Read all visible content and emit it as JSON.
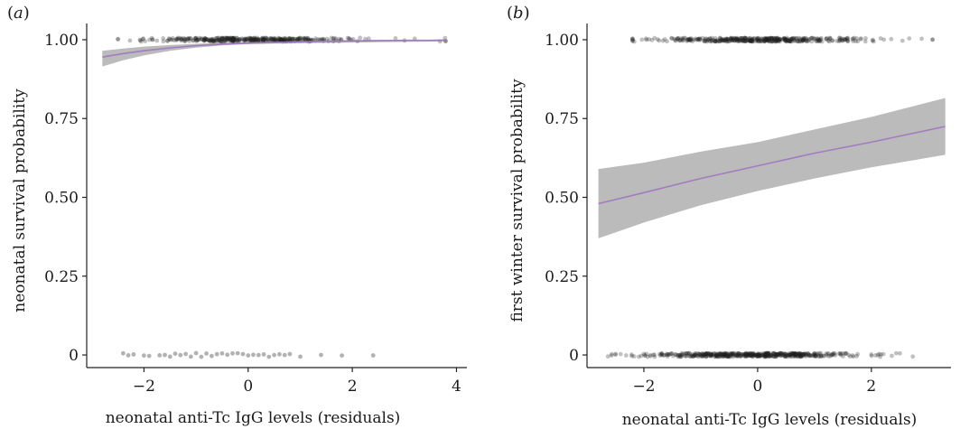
{
  "chart_data": [
    {
      "type": "scatter",
      "panel_label": "a",
      "xlabel": "neonatal anti-Tc IgG levels (residuals)",
      "ylabel": "neonatal survival probability",
      "xlim": [
        -3.1,
        4.2
      ],
      "ylim": [
        -0.04,
        1.04
      ],
      "xticks": [
        -2,
        0,
        2,
        4
      ],
      "xtick_labels": [
        "−2",
        "0",
        "2",
        "4"
      ],
      "yticks": [
        0,
        0.25,
        0.5,
        0.75,
        1.0
      ],
      "ytick_labels": [
        "0",
        "0.25",
        "0.50",
        "0.75",
        "1.00"
      ],
      "fit_line": {
        "x": [
          -2.8,
          -2.4,
          -2.0,
          -1.5,
          -1.0,
          -0.5,
          0.0,
          0.5,
          1.0,
          1.5,
          2.0,
          2.5,
          3.0,
          3.5,
          3.8
        ],
        "y": [
          0.945,
          0.956,
          0.965,
          0.974,
          0.981,
          0.986,
          0.989,
          0.991,
          0.993,
          0.995,
          0.996,
          0.997,
          0.998,
          0.998,
          0.999
        ]
      },
      "ci_band": {
        "x": [
          -2.8,
          -2.4,
          -2.0,
          -1.5,
          -1.0,
          -0.5,
          0.0,
          0.5,
          1.0,
          1.5,
          2.0,
          2.5,
          3.0,
          3.5,
          3.8
        ],
        "lower": [
          0.915,
          0.935,
          0.95,
          0.965,
          0.975,
          0.982,
          0.986,
          0.988,
          0.989,
          0.99,
          0.991,
          0.992,
          0.993,
          0.994,
          0.995
        ],
        "upper": [
          0.965,
          0.972,
          0.978,
          0.983,
          0.987,
          0.99,
          0.992,
          0.994,
          0.996,
          0.998,
          0.999,
          1.0,
          1.0,
          1.0,
          1.0
        ]
      },
      "points": {
        "survived_y": 1.0,
        "survived_x_range": [
          -2.5,
          3.8
        ],
        "survived_count": 380,
        "died_y": 0.0,
        "died_x": [
          -2.4,
          -2.3,
          -2.2,
          -2.0,
          -1.9,
          -1.7,
          -1.6,
          -1.5,
          -1.4,
          -1.3,
          -1.2,
          -1.1,
          -1.0,
          -0.9,
          -0.8,
          -0.7,
          -0.6,
          -0.5,
          -0.4,
          -0.3,
          -0.2,
          -0.1,
          0.0,
          0.1,
          0.2,
          0.3,
          0.4,
          0.5,
          0.6,
          0.7,
          0.8,
          1.0,
          1.4,
          1.8,
          2.4
        ]
      },
      "colors": {
        "line": "#a27cc0",
        "band": "#9e9e9e",
        "points": "#222222"
      }
    },
    {
      "type": "scatter",
      "panel_label": "b",
      "xlabel": "neonatal anti-Tc IgG levels (residuals)",
      "ylabel": "first winter survival probability",
      "xlim": [
        -3.0,
        3.4
      ],
      "ylim": [
        -0.04,
        1.04
      ],
      "xticks": [
        -2,
        0,
        2
      ],
      "xtick_labels": [
        "−2",
        "0",
        "2"
      ],
      "yticks": [
        0,
        0.25,
        0.5,
        0.75,
        1.0
      ],
      "ytick_labels": [
        "0",
        "0.25",
        "0.50",
        "0.75",
        "1.00"
      ],
      "fit_line": {
        "x": [
          -2.8,
          -2.0,
          -1.0,
          0.0,
          1.0,
          2.0,
          3.3
        ],
        "y": [
          0.48,
          0.515,
          0.56,
          0.6,
          0.64,
          0.675,
          0.725
        ]
      },
      "ci_band": {
        "x": [
          -2.8,
          -2.0,
          -1.0,
          0.0,
          1.0,
          2.0,
          3.3
        ],
        "lower": [
          0.37,
          0.42,
          0.475,
          0.52,
          0.56,
          0.595,
          0.635
        ],
        "upper": [
          0.59,
          0.61,
          0.645,
          0.675,
          0.715,
          0.755,
          0.815
        ]
      },
      "points": {
        "survived_y": 1.0,
        "survived_x_range": [
          -2.2,
          3.3
        ],
        "survived_count": 420,
        "died_y": 0.0,
        "died_x_range": [
          -2.8,
          3.3
        ],
        "died_count": 520
      },
      "colors": {
        "line": "#a27cc0",
        "band": "#9e9e9e",
        "points": "#222222"
      }
    }
  ]
}
